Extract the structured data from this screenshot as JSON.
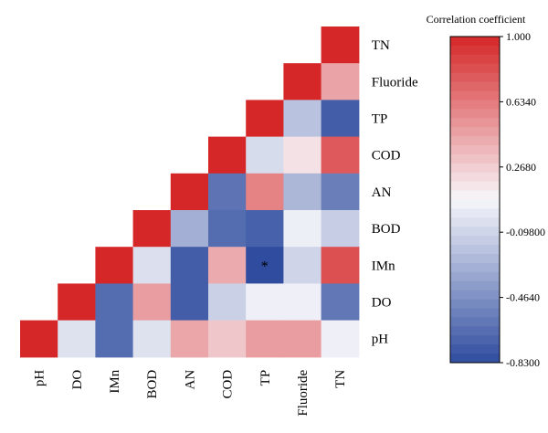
{
  "chart_data": {
    "type": "heatmap",
    "title": "",
    "xlabel": "",
    "ylabel": "",
    "x_labels": [
      "pH",
      "DO",
      "IMn",
      "BOD",
      "AN",
      "COD",
      "TP",
      "Fluoride",
      "TN"
    ],
    "y_labels_top_to_bottom": [
      "TN",
      "Fluoride",
      "TP",
      "COD",
      "AN",
      "BOD",
      "IMn",
      "DO",
      "pH"
    ],
    "matrix_rows_top_to_bottom": [
      [
        null,
        null,
        null,
        null,
        null,
        null,
        null,
        null,
        1.0
      ],
      [
        null,
        null,
        null,
        null,
        null,
        null,
        null,
        1.0,
        0.45
      ],
      [
        null,
        null,
        null,
        null,
        null,
        null,
        1.0,
        -0.2,
        -0.74
      ],
      [
        null,
        null,
        null,
        null,
        null,
        1.0,
        -0.06,
        0.18,
        0.78
      ],
      [
        null,
        null,
        null,
        null,
        1.0,
        -0.62,
        0.6,
        -0.26,
        -0.56
      ],
      [
        null,
        null,
        null,
        1.0,
        -0.3,
        -0.66,
        -0.72,
        0.04,
        -0.14
      ],
      [
        null,
        null,
        1.0,
        -0.04,
        -0.74,
        0.42,
        -0.83,
        -0.1,
        0.82
      ],
      [
        null,
        1.0,
        -0.66,
        0.48,
        -0.74,
        -0.12,
        0.05,
        0.05,
        -0.6
      ],
      [
        1.0,
        -0.03,
        -0.66,
        -0.03,
        0.44,
        0.3,
        0.48,
        0.48,
        0.05
      ]
    ],
    "annotations": [
      {
        "row": "IMn",
        "col": "TP",
        "text": "*"
      }
    ],
    "colorbar": {
      "title": "Correlation coefficient",
      "min": -0.83,
      "max": 1.0,
      "ticks": [
        1.0,
        0.634,
        0.268,
        -0.098,
        -0.464,
        -0.83
      ],
      "tick_labels": [
        "1.000",
        "0.6340",
        "0.2680",
        "-0.09800",
        "-0.4640",
        "-0.8300"
      ],
      "steps": 36
    },
    "colors": {
      "high": "#d62728",
      "mid": "#f7f7fb",
      "low": "#2f4c9f",
      "background": "#ffffff",
      "frame": "#000000"
    },
    "grid": false,
    "legend_position": "right"
  }
}
